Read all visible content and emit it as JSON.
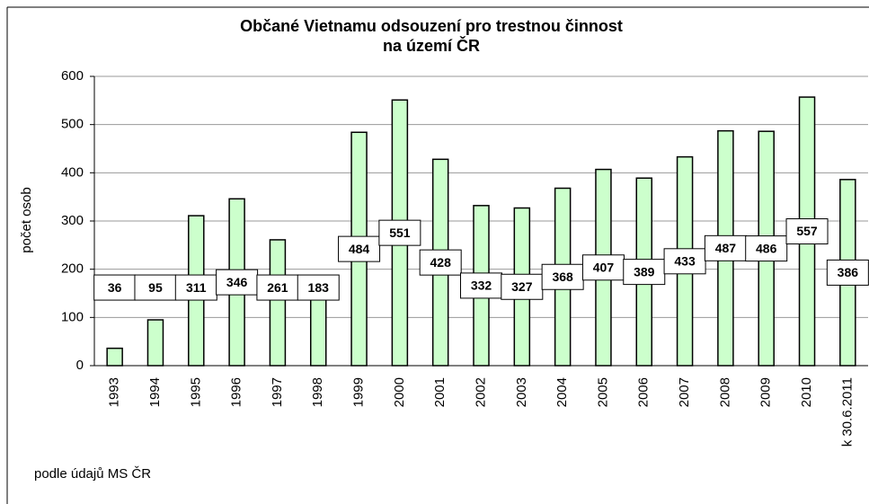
{
  "chart_data": {
    "type": "bar",
    "title": [
      "Občané Vietnamu odsouzení pro trestnou činnost",
      "na území ČR"
    ],
    "y_label": "počet osob",
    "note": "podle údajů MS ČR",
    "categories": [
      "1993",
      "1994",
      "1995",
      "1996",
      "1997",
      "1998",
      "1999",
      "2000",
      "2001",
      "2002",
      "2003",
      "2004",
      "2005",
      "2006",
      "2007",
      "2008",
      "2009",
      "2010",
      "k 30.6.2011"
    ],
    "values": [
      36,
      95,
      311,
      346,
      261,
      183,
      484,
      551,
      428,
      332,
      327,
      368,
      407,
      389,
      433,
      487,
      486,
      557,
      386
    ],
    "color": "#ccffcc",
    "ylim": [
      0,
      600
    ],
    "yticks": [
      0,
      100,
      200,
      300,
      400,
      500,
      600
    ],
    "grid": true
  }
}
